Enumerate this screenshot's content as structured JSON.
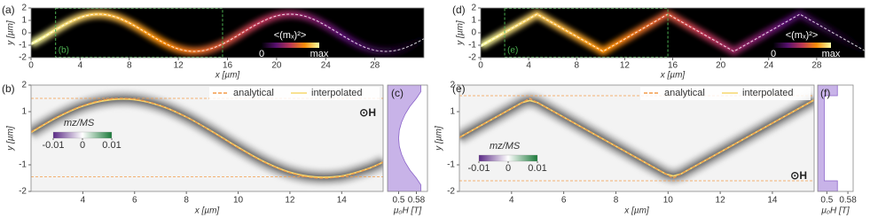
{
  "chart_data": [
    {
      "type": "heatmap",
      "label": "(a)",
      "background": "#000000",
      "smooth": true,
      "xlabel": "x [µm]",
      "ylabel": "y [µm]",
      "xlim": [
        0,
        32
      ],
      "ylim": [
        -2,
        2
      ],
      "xticks": [
        0,
        4,
        8,
        12,
        16,
        20,
        24,
        28
      ],
      "yticks": [
        -2,
        -1,
        0,
        1,
        2
      ],
      "inset_label": "(b)",
      "inset_color": "#4caf50",
      "colorbar": {
        "label": "<(mₓ)²>",
        "labels": [
          "0",
          "max"
        ],
        "colors": [
          "#000004",
          "#57106e",
          "#bc3754",
          "#f98e09",
          "#fcffa4"
        ]
      },
      "series": [
        {
          "x": [
            0,
            1,
            2,
            3,
            4,
            5,
            6,
            7,
            8,
            9,
            10,
            11,
            12,
            13,
            14,
            15,
            16,
            17,
            18,
            19,
            20,
            21,
            22,
            23,
            24,
            25,
            26,
            27,
            28,
            29,
            30,
            31,
            32
          ],
          "values": [
            -0.9,
            -0.36,
            0.24,
            0.8,
            1.23,
            1.47,
            1.47,
            1.23,
            0.8,
            0.24,
            -0.36,
            -0.9,
            -1.3,
            -1.49,
            -1.44,
            -1.16,
            -0.7,
            -0.12,
            0.48,
            0.99,
            1.36,
            1.5,
            1.41,
            1.09,
            0.59,
            0,
            -0.59,
            -1.09,
            -1.41,
            -1.5,
            -1.36,
            -0.99,
            -0.48
          ],
          "color": "#ffffff"
        }
      ]
    },
    {
      "type": "line",
      "label": "(b)",
      "background": "#f3f3f3",
      "smooth": true,
      "xlabel": "x [µm]",
      "ylabel": "y [µm]",
      "xlim": [
        2,
        15.6
      ],
      "ylim": [
        -2,
        2
      ],
      "xticks": [
        4,
        6,
        8,
        10,
        12,
        14
      ],
      "yticks": [
        -2,
        -1,
        1,
        2
      ],
      "hlines": [
        1.5,
        -1.45
      ],
      "legend": "upper right",
      "annotation": "⊙H",
      "colorbar": {
        "label": "mz/MS",
        "ticks": [
          -0.01,
          0,
          0.01
        ],
        "colors": [
          "#5b2a86",
          "#ffffff",
          "#1b7a3a"
        ]
      },
      "series": [
        {
          "name": "analytical",
          "color": "#f39c4a",
          "x": [
            2,
            3,
            4,
            5,
            6,
            7,
            8,
            9,
            10,
            11,
            12,
            13,
            14,
            15,
            15.6
          ],
          "values": [
            0.24,
            0.8,
            1.23,
            1.47,
            1.47,
            1.23,
            0.8,
            0.24,
            -0.36,
            -0.9,
            -1.3,
            -1.49,
            -1.44,
            -1.16,
            -0.9
          ]
        },
        {
          "name": "interpolated",
          "color": "#f5d76e",
          "x": [
            2,
            3,
            4,
            5,
            6,
            7,
            8,
            9,
            10,
            11,
            12,
            13,
            14,
            15,
            15.6
          ],
          "values": [
            0.22,
            0.78,
            1.21,
            1.44,
            1.45,
            1.22,
            0.8,
            0.25,
            -0.34,
            -0.88,
            -1.28,
            -1.46,
            -1.42,
            -1.15,
            -0.9
          ]
        }
      ]
    },
    {
      "type": "area",
      "label": "(c)",
      "background": "#ffffff",
      "color": "#c8b3e8",
      "xlabel": "μ₀H [T]",
      "xlim": [
        0.45,
        0.63
      ],
      "ylim": [
        -2,
        2
      ],
      "xticks": [
        0.5,
        0.58
      ],
      "y": [
        -2,
        -1.75,
        -1.5,
        -1.2,
        -0.9,
        -0.6,
        -0.3,
        0,
        0.3,
        0.6,
        0.9,
        1.2,
        1.5,
        1.75,
        2
      ],
      "values": [
        0.6,
        0.6,
        0.58,
        0.551,
        0.529,
        0.513,
        0.503,
        0.5,
        0.503,
        0.513,
        0.529,
        0.551,
        0.58,
        0.6,
        0.6
      ]
    },
    {
      "type": "heatmap",
      "label": "(d)",
      "background": "#000000",
      "smooth": false,
      "xlabel": "x [µm]",
      "ylabel": "y [µm]",
      "xlim": [
        0,
        32
      ],
      "ylim": [
        -2,
        2
      ],
      "xticks": [
        0,
        4,
        8,
        12,
        16,
        20,
        24,
        28
      ],
      "yticks": [
        -2,
        -1,
        0,
        1,
        2
      ],
      "inset_label": "(e)",
      "inset_color": "#4caf50",
      "colorbar": {
        "label": "<(mₓ)²>",
        "labels": [
          "0",
          "max"
        ],
        "colors": [
          "#000004",
          "#57106e",
          "#bc3754",
          "#f98e09",
          "#fcffa4"
        ]
      },
      "series": [
        {
          "x": [
            0,
            4.7,
            10.2,
            15.6,
            21.1,
            26.6,
            32
          ],
          "values": [
            -1.06,
            1.5,
            -1.5,
            1.5,
            -1.5,
            1.5,
            -1.44
          ],
          "color": "#ffffff"
        }
      ]
    },
    {
      "type": "line",
      "label": "(e)",
      "background": "#f3f3f3",
      "smooth": false,
      "xlabel": "x [µm]",
      "ylabel": "y [µm]",
      "xlim": [
        2,
        15.6
      ],
      "ylim": [
        -2,
        2
      ],
      "xticks": [
        4,
        6,
        8,
        10,
        12,
        14
      ],
      "yticks": [
        -2,
        -1,
        1,
        2
      ],
      "hlines": [
        1.6,
        -1.6
      ],
      "legend": "upper right",
      "annotation": "⊙H",
      "colorbar": {
        "label": "mz/MS",
        "ticks": [
          -0.01,
          0,
          0.01
        ],
        "colors": [
          "#5b2a86",
          "#ffffff",
          "#1b7a3a"
        ]
      },
      "series": [
        {
          "name": "analytical",
          "color": "#f39c4a",
          "x": [
            2,
            4.7,
            10.2,
            15.6
          ],
          "values": [
            0.03,
            1.5,
            -1.5,
            1.44
          ]
        },
        {
          "name": "interpolated",
          "color": "#f5d76e",
          "x": [
            2,
            4.4,
            4.7,
            5.0,
            9.9,
            10.2,
            10.5,
            15.6
          ],
          "values": [
            0.03,
            1.34,
            1.42,
            1.34,
            -1.34,
            -1.42,
            -1.34,
            1.44
          ]
        }
      ]
    },
    {
      "type": "area",
      "label": "(f)",
      "background": "#ffffff",
      "color": "#c8b3e8",
      "xlabel": "μ₀H [T]",
      "xlim": [
        0.465,
        0.6
      ],
      "ylim": [
        -2,
        2
      ],
      "xticks": [
        0.5,
        0.58
      ],
      "y": [
        -2,
        -1.6,
        -1.6,
        1.6,
        1.6,
        2
      ],
      "values": [
        0.54,
        0.54,
        0.49,
        0.49,
        0.54,
        0.54
      ]
    }
  ]
}
